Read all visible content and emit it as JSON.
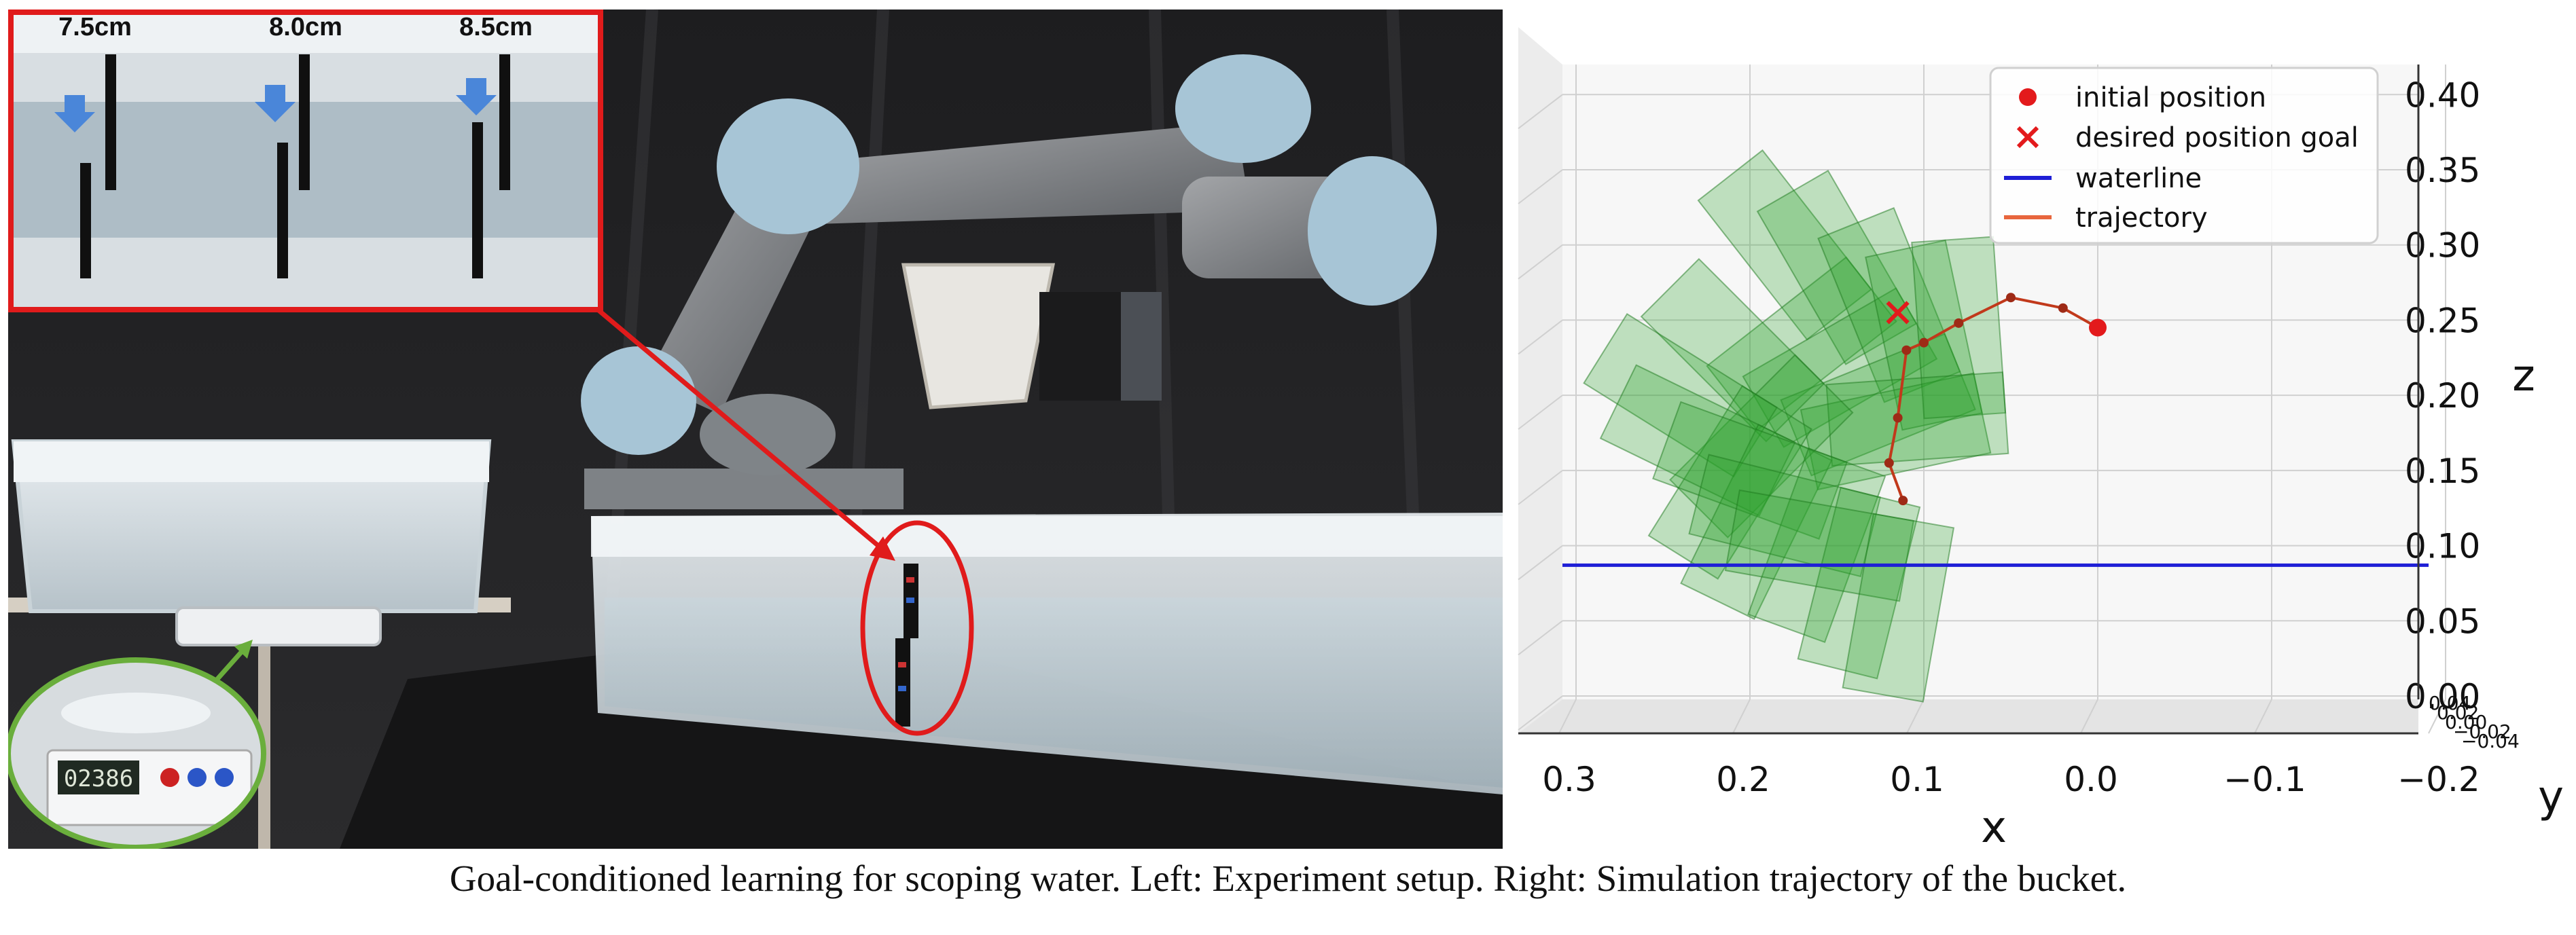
{
  "caption": "Goal-conditioned learning for scoping water. Left: Experiment setup. Right: Simulation trajectory of the bucket.",
  "photo": {
    "inset_labels": [
      "7.5cm",
      "8.0cm",
      "8.5cm"
    ],
    "scale_display": "02386"
  },
  "chart_data": {
    "type": "scatter",
    "title": "",
    "xlabel": "x",
    "ylabel": "z",
    "ylabel2": "y",
    "xlim": [
      0.3,
      -0.2
    ],
    "zlim": [
      0.0,
      0.42
    ],
    "x_ticks": [
      "0.3",
      "0.2",
      "0.1",
      "0.0",
      "−0.1",
      "−0.2"
    ],
    "z_ticks": [
      "0.00",
      "0.05",
      "0.10",
      "0.15",
      "0.20",
      "0.25",
      "0.30",
      "0.35",
      "0.40"
    ],
    "y_ticks": [
      "0.04",
      "0.02",
      "0.00",
      "−0.02",
      "−0.04"
    ],
    "grid": true,
    "legend_position": "top-right",
    "legend": [
      {
        "label": "initial position",
        "marker": "dot",
        "color": "#e31a1c"
      },
      {
        "label": "desired position goal",
        "marker": "x",
        "color": "#e31a1c"
      },
      {
        "label": "waterline",
        "marker": "line",
        "color": "#1f1fd6"
      },
      {
        "label": "trajectory",
        "marker": "line",
        "color": "#e8663d"
      }
    ],
    "initial_position": {
      "x": 0.0,
      "z": 0.245
    },
    "goal_position": {
      "x": 0.115,
      "z": 0.255
    },
    "waterline_z": 0.087,
    "trajectory": [
      {
        "x": 0.0,
        "z": 0.245
      },
      {
        "x": 0.02,
        "z": 0.258
      },
      {
        "x": 0.05,
        "z": 0.265
      },
      {
        "x": 0.08,
        "z": 0.248
      },
      {
        "x": 0.1,
        "z": 0.235
      },
      {
        "x": 0.11,
        "z": 0.23
      },
      {
        "x": 0.115,
        "z": 0.185
      },
      {
        "x": 0.12,
        "z": 0.155
      },
      {
        "x": 0.112,
        "z": 0.13
      }
    ],
    "bucket_poses": [
      {
        "x": 0.18,
        "z": 0.3,
        "angle": -38
      },
      {
        "x": 0.15,
        "z": 0.285,
        "angle": -30
      },
      {
        "x": 0.12,
        "z": 0.26,
        "angle": -22
      },
      {
        "x": 0.1,
        "z": 0.24,
        "angle": -12
      },
      {
        "x": 0.08,
        "z": 0.245,
        "angle": -4
      },
      {
        "x": 0.21,
        "z": 0.23,
        "angle": -45
      },
      {
        "x": 0.24,
        "z": 0.2,
        "angle": -58
      },
      {
        "x": 0.23,
        "z": 0.17,
        "angle": -64
      },
      {
        "x": 0.2,
        "z": 0.15,
        "angle": -70
      },
      {
        "x": 0.18,
        "z": 0.12,
        "angle": -76
      },
      {
        "x": 0.16,
        "z": 0.1,
        "angle": -80
      }
    ],
    "colors": {
      "bucket": "#2ca02c",
      "grid": "#d0d0d0"
    }
  }
}
